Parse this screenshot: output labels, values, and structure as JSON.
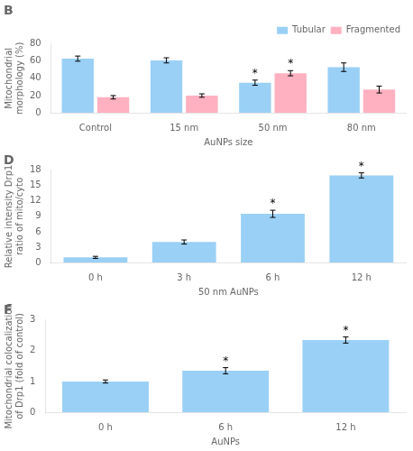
{
  "chart_data": [
    {
      "type": "bar",
      "title": "B",
      "categories": [
        "Control",
        "15 nm",
        "50 nm",
        "80 nm"
      ],
      "series": [
        {
          "name": "Tubular",
          "values": [
            63,
            61,
            35,
            53
          ],
          "errors": [
            3,
            3,
            3,
            5
          ]
        },
        {
          "name": "Fragmented",
          "values": [
            18,
            20,
            46,
            27
          ],
          "errors": [
            2,
            2,
            3,
            4
          ]
        }
      ],
      "ylabel": "Mitochondrial\nmorphology (%)",
      "xlabel": "AuNPs size",
      "ylim": [
        0,
        80
      ],
      "yticks": [
        0,
        20,
        40,
        60,
        80
      ],
      "annotations": [
        {
          "text": "*",
          "category": "50 nm",
          "series": "Tubular"
        },
        {
          "text": "*",
          "category": "50 nm",
          "series": "Fragmented"
        }
      ],
      "legend": "upper right",
      "grid": false
    },
    {
      "type": "bar",
      "title": "D",
      "categories": [
        "0 h",
        "3 h",
        "6 h",
        "12 h"
      ],
      "values": [
        1.0,
        4.0,
        9.5,
        17.0
      ],
      "errors": [
        0.2,
        0.4,
        0.7,
        0.5
      ],
      "ylabel": "Relative intensity Drp1\nratio of mito/cyto",
      "xlabel": "50 nm AuNPs",
      "ylim": [
        0,
        18
      ],
      "yticks": [
        0,
        3,
        6,
        9,
        12,
        15,
        18
      ],
      "annotations": [
        {
          "text": "*",
          "category": "6 h"
        },
        {
          "text": "*",
          "category": "12 h"
        }
      ],
      "grid": false
    },
    {
      "type": "bar",
      "title": "F",
      "categories": [
        "0 h",
        "6 h",
        "12 h"
      ],
      "values": [
        1.0,
        1.35,
        2.35
      ],
      "errors": [
        0.05,
        0.1,
        0.1
      ],
      "ylabel": "Mitochondrial colocalization\nof Drp1 (fold of control)",
      "xlabel": "AuNPs",
      "ylim": [
        0,
        3
      ],
      "yticks": [
        0,
        1,
        2,
        3
      ],
      "annotations": [
        {
          "text": "*",
          "category": "6 h"
        },
        {
          "text": "*",
          "category": "12 h"
        }
      ],
      "grid": false
    }
  ]
}
